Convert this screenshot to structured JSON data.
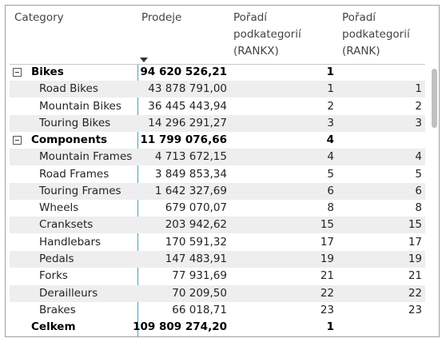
{
  "table": {
    "columns": [
      "Category",
      "Prodeje",
      "Pořadí podkategorií (RANKX)",
      "Pořadí podkategorií (RANK)"
    ],
    "groups": [
      {
        "label": "Bikes",
        "sales": "94 620 526,21",
        "rankx": "1",
        "rows": [
          {
            "label": "Road Bikes",
            "sales": "43 878 791,00",
            "rankx": "1",
            "rank": "1"
          },
          {
            "label": "Mountain Bikes",
            "sales": "36 445 443,94",
            "rankx": "2",
            "rank": "2"
          },
          {
            "label": "Touring Bikes",
            "sales": "14 296 291,27",
            "rankx": "3",
            "rank": "3"
          }
        ]
      },
      {
        "label": "Components",
        "sales": "11 799 076,66",
        "rankx": "4",
        "rows": [
          {
            "label": "Mountain Frames",
            "sales": "4 713 672,15",
            "rankx": "4",
            "rank": "4"
          },
          {
            "label": "Road Frames",
            "sales": "3 849 853,34",
            "rankx": "5",
            "rank": "5"
          },
          {
            "label": "Touring Frames",
            "sales": "1 642 327,69",
            "rankx": "6",
            "rank": "6"
          },
          {
            "label": "Wheels",
            "sales": "679 070,07",
            "rankx": "8",
            "rank": "8"
          },
          {
            "label": "Cranksets",
            "sales": "203 942,62",
            "rankx": "15",
            "rank": "15"
          },
          {
            "label": "Handlebars",
            "sales": "170 591,32",
            "rankx": "17",
            "rank": "17"
          },
          {
            "label": "Pedals",
            "sales": "147 483,91",
            "rankx": "19",
            "rank": "19"
          },
          {
            "label": "Forks",
            "sales": "77 931,69",
            "rankx": "21",
            "rank": "21"
          },
          {
            "label": "Derailleurs",
            "sales": "70 209,50",
            "rankx": "22",
            "rank": "22"
          },
          {
            "label": "Brakes",
            "sales": "66 018,71",
            "rankx": "23",
            "rank": "23"
          }
        ]
      }
    ],
    "total": {
      "label": "Celkem",
      "sales": "109 809 274,20",
      "rankx": "1"
    }
  }
}
